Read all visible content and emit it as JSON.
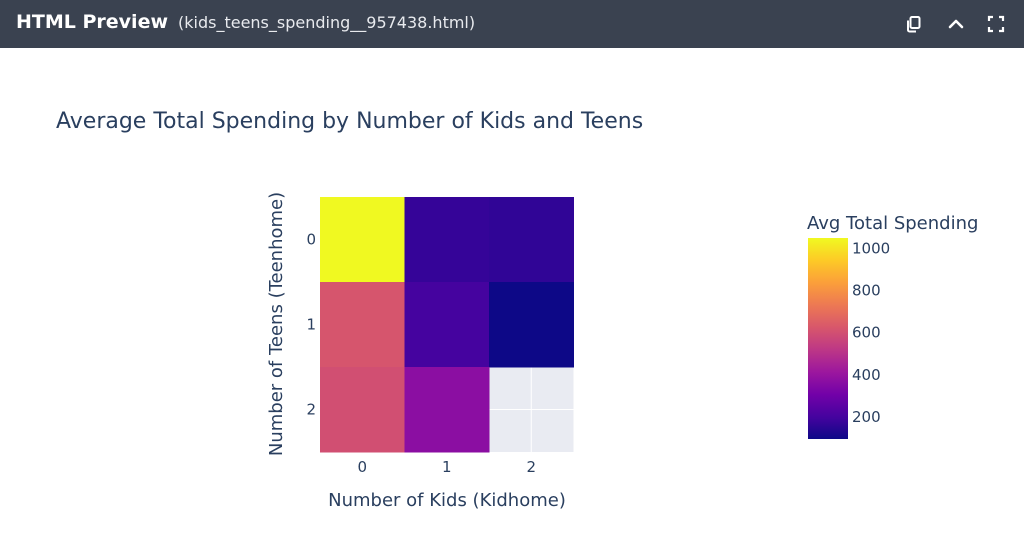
{
  "window": {
    "app_title": "HTML Preview",
    "file_name": "(kids_teens_spending__957438.html)",
    "icons": [
      "copy-icon",
      "chevron-up-icon",
      "fullscreen-icon"
    ]
  },
  "colors": {
    "topbar_bg": "#3a4250",
    "text": "#2a3f5f",
    "empty_cell": "#e9ebf2"
  },
  "chart_data": {
    "type": "heatmap",
    "title": "Average Total Spending by Number of Kids and Teens",
    "xlabel": "Number of Kids (Kidhome)",
    "ylabel": "Number of Teens (Teenhome)",
    "x_categories": [
      "0",
      "1",
      "2"
    ],
    "y_categories": [
      "0",
      "1",
      "2"
    ],
    "z": [
      [
        1050,
        170,
        160
      ],
      [
        620,
        200,
        95
      ],
      [
        600,
        370,
        null
      ]
    ],
    "colorbar": {
      "title": "Avg Total Spending",
      "range": [
        95,
        1050
      ],
      "ticks": [
        200,
        400,
        600,
        800,
        1000
      ],
      "colorscale": "plasma"
    }
  }
}
